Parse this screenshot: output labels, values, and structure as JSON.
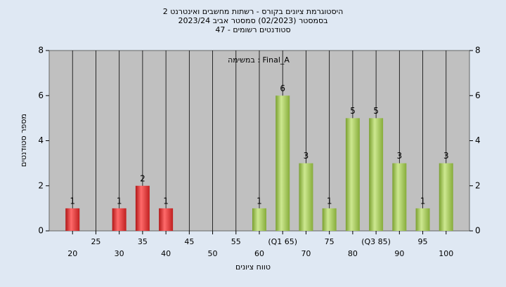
{
  "chart_data": {
    "type": "bar",
    "title": "היסטוגרמת ציונים בקורס - רשתות מחשבים ואינטרנט 2",
    "subtitle": "בסמסטר  (02/2023)  סמסטר אביב 2023/24",
    "subtitle2": "סטודנטים רשומים - 47",
    "annotation": "במשימה : Final_A",
    "x_label": "טווח ציונים",
    "y_label": "מספר סטודנטים",
    "categories": [
      "20",
      "25",
      "30",
      "35",
      "40",
      "45",
      "50",
      "55",
      "60",
      "(Q1 65)",
      "70",
      "75",
      "80",
      "(Q3 85)",
      "90",
      "95",
      "100"
    ],
    "values": [
      1,
      0,
      1,
      2,
      1,
      0,
      0,
      0,
      1,
      6,
      3,
      1,
      5,
      5,
      3,
      1,
      3
    ],
    "colors": [
      "red",
      "red",
      "red",
      "red",
      "red",
      "red",
      "red",
      "red",
      "green",
      "green",
      "green",
      "green",
      "green",
      "green",
      "green",
      "green",
      "green"
    ],
    "ylim": [
      0,
      8
    ],
    "yticks": [
      0,
      2,
      4,
      6,
      8
    ]
  }
}
